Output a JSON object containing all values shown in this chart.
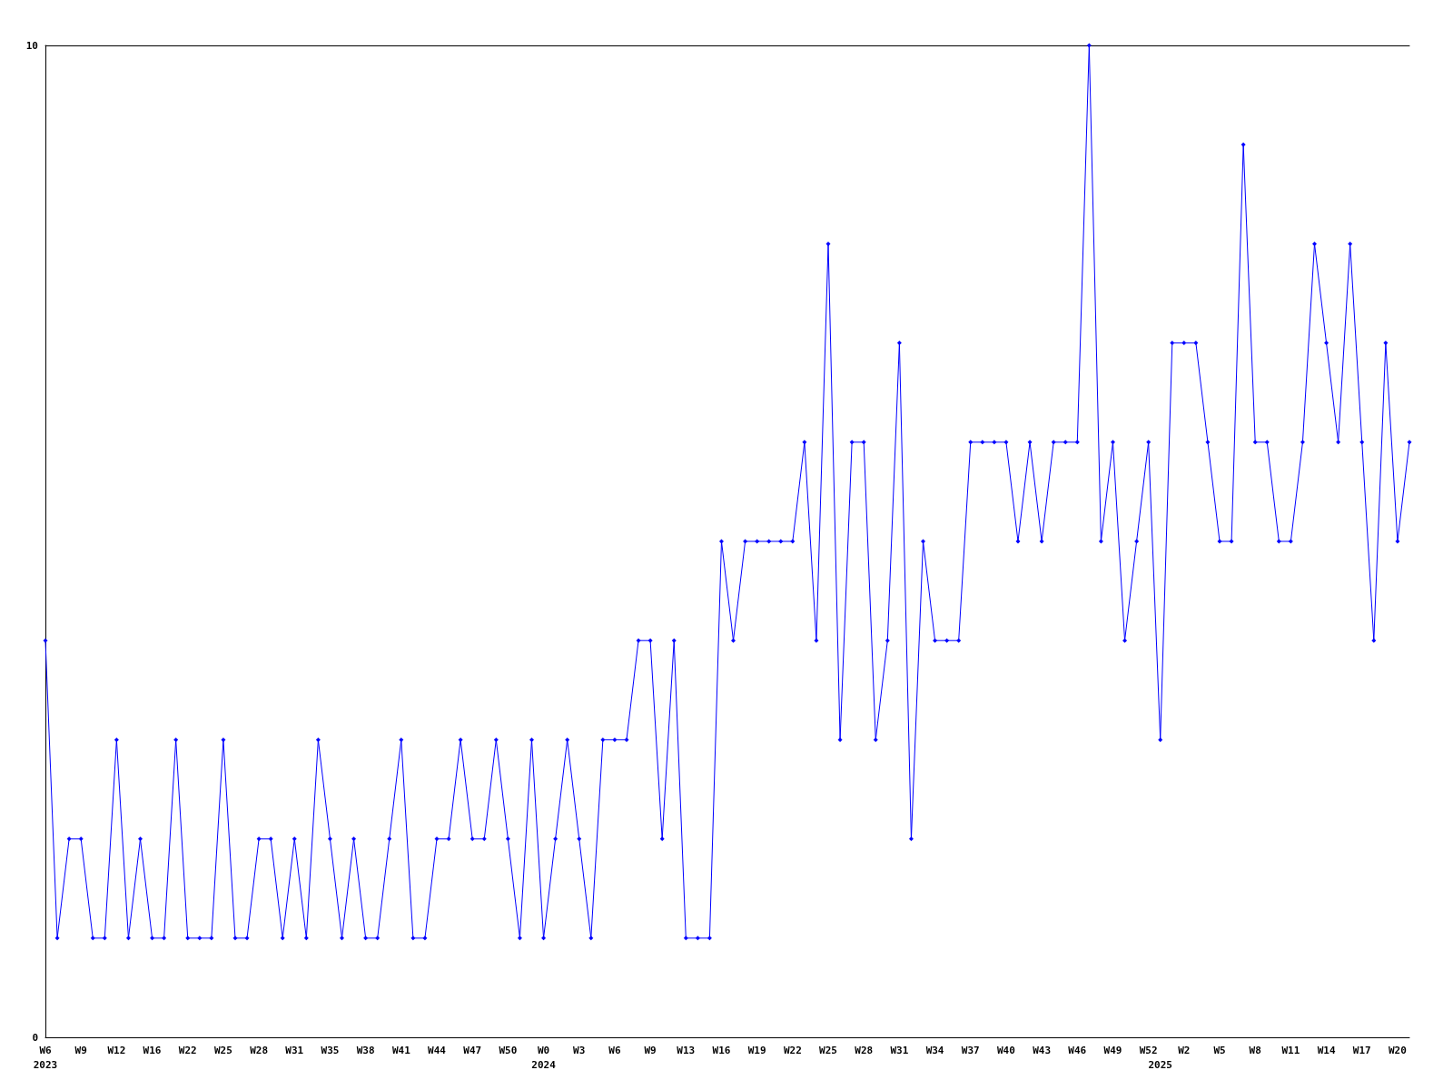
{
  "chart_data": {
    "type": "line",
    "categories": [
      "W6\n2023",
      null,
      null,
      "W9",
      null,
      null,
      "W12",
      null,
      null,
      "W16",
      null,
      null,
      "W22",
      null,
      null,
      "W25",
      null,
      null,
      "W28",
      null,
      null,
      "W31",
      null,
      null,
      "W35",
      null,
      null,
      "W38",
      null,
      null,
      "W41",
      null,
      null,
      "W44",
      null,
      null,
      "W47",
      null,
      null,
      "W50",
      null,
      null,
      "W0\n2024",
      null,
      null,
      "W3",
      null,
      null,
      "W6",
      null,
      null,
      "W9",
      null,
      null,
      "W13",
      null,
      null,
      "W16",
      null,
      null,
      "W19",
      null,
      null,
      "W22",
      null,
      null,
      "W25",
      null,
      null,
      "W28",
      null,
      null,
      "W31",
      null,
      null,
      "W34",
      null,
      null,
      "W37",
      null,
      null,
      "W40",
      null,
      null,
      "W43",
      null,
      null,
      "W46",
      null,
      null,
      "W49",
      null,
      null,
      "W52",
      "\n2025",
      null,
      "W2",
      null,
      null,
      "W5",
      null,
      null,
      "W8",
      null,
      null,
      "W11",
      null,
      null,
      "W14",
      null,
      null,
      "W17",
      null,
      null,
      "W20",
      null
    ],
    "series": [
      {
        "color": "#0000ff",
        "values": [
          4,
          1,
          2,
          2,
          1,
          1,
          3,
          1,
          2,
          1,
          1,
          3,
          1,
          1,
          1,
          3,
          1,
          1,
          2,
          2,
          1,
          2,
          1,
          3,
          2,
          1,
          2,
          1,
          1,
          2,
          3,
          1,
          1,
          2,
          2,
          3,
          2,
          2,
          3,
          2,
          1,
          3,
          1,
          2,
          3,
          2,
          1,
          3,
          3,
          3,
          4,
          4,
          2,
          4,
          1,
          1,
          1,
          5,
          4,
          5,
          5,
          5,
          5,
          5,
          6,
          4,
          8,
          3,
          6,
          6,
          3,
          4,
          7,
          2,
          5,
          4,
          4,
          4,
          6,
          6,
          6,
          6,
          5,
          6,
          5,
          6,
          6,
          6,
          10,
          5,
          6,
          4,
          5,
          6,
          3,
          7,
          7,
          7,
          6,
          5,
          5,
          9,
          6,
          6,
          5,
          5,
          6,
          8,
          7,
          6,
          8,
          6,
          4,
          7,
          5,
          6
        ]
      }
    ],
    "ylim": [
      0,
      10
    ],
    "yticks": [
      0,
      10
    ],
    "marker": "diamond",
    "line_style": "solid"
  }
}
